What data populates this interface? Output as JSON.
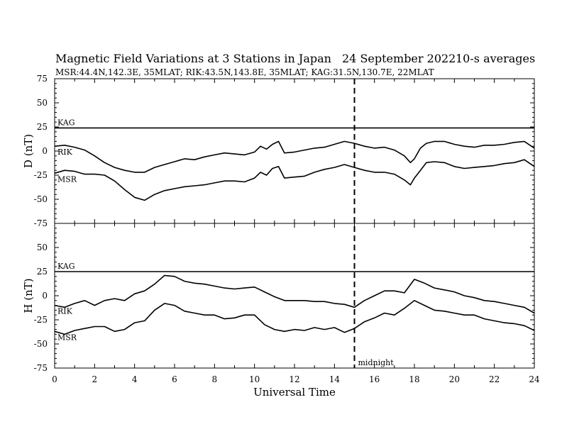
{
  "header": {
    "title": "Magnetic Field Variations at 3 Stations in Japan",
    "date": "24 September 2022",
    "averaging": "10-s averages",
    "stations_line": "MSR:44.4N,142.3E, 35MLAT;  RIK:43.5N,143.8E, 35MLAT;  KAG:31.5N,130.7E, 22MLAT"
  },
  "chart_data": [
    {
      "type": "line",
      "panel": "top",
      "ylabel": "D (nT)",
      "ylim": [
        -75,
        75
      ],
      "yticks": [
        "75",
        "50",
        "25",
        "0",
        "-25",
        "-50",
        "-75"
      ],
      "xlim": [
        0,
        24
      ],
      "grid": false,
      "series": [
        {
          "name": "KAG",
          "x": [
            0,
            24
          ],
          "values": [
            24,
            24
          ]
        },
        {
          "name": "RIK",
          "x": [
            0,
            0.5,
            1,
            1.5,
            2,
            2.5,
            3,
            3.5,
            4,
            4.5,
            5,
            5.5,
            6,
            6.5,
            7,
            7.5,
            8,
            8.5,
            9,
            9.5,
            10,
            10.3,
            10.6,
            10.9,
            11.2,
            11.5,
            12,
            12.5,
            13,
            13.5,
            14,
            14.5,
            15,
            15.5,
            16,
            16.5,
            17,
            17.5,
            17.8,
            18,
            18.3,
            18.6,
            19,
            19.5,
            20,
            20.5,
            21,
            21.5,
            22,
            22.5,
            23,
            23.5,
            24
          ],
          "values": [
            5,
            6,
            4,
            1,
            -5,
            -12,
            -17,
            -20,
            -22,
            -22,
            -17,
            -14,
            -11,
            -8,
            -9,
            -6,
            -4,
            -2,
            -3,
            -4,
            -1,
            5,
            2,
            7,
            10,
            -2,
            -1,
            1,
            3,
            4,
            7,
            10,
            8,
            5,
            3,
            4,
            1,
            -5,
            -12,
            -8,
            3,
            8,
            10,
            10,
            7,
            5,
            4,
            6,
            6,
            7,
            9,
            10,
            3
          ]
        },
        {
          "name": "MSR",
          "x": [
            0,
            0.5,
            1,
            1.5,
            2,
            2.5,
            3,
            3.5,
            4,
            4.5,
            5,
            5.5,
            6,
            6.5,
            7,
            7.5,
            8,
            8.5,
            9,
            9.5,
            10,
            10.3,
            10.6,
            10.9,
            11.2,
            11.5,
            12,
            12.5,
            13,
            13.5,
            14,
            14.5,
            15,
            15.5,
            16,
            16.5,
            17,
            17.5,
            17.8,
            18,
            18.3,
            18.6,
            19,
            19.5,
            20,
            20.5,
            21,
            21.5,
            22,
            22.5,
            23,
            23.5,
            24
          ],
          "values": [
            -23,
            -20,
            -21,
            -24,
            -24,
            -25,
            -31,
            -40,
            -48,
            -51,
            -45,
            -41,
            -39,
            -37,
            -36,
            -35,
            -33,
            -31,
            -31,
            -32,
            -28,
            -22,
            -25,
            -18,
            -16,
            -28,
            -27,
            -26,
            -22,
            -19,
            -17,
            -14,
            -17,
            -20,
            -22,
            -22,
            -24,
            -30,
            -35,
            -28,
            -20,
            -12,
            -11,
            -12,
            -16,
            -18,
            -17,
            -16,
            -15,
            -13,
            -12,
            -9,
            -16
          ]
        }
      ]
    },
    {
      "type": "line",
      "panel": "bottom",
      "ylabel": "H (nT)",
      "xlabel": "Universal Time",
      "ylim": [
        -75,
        75
      ],
      "yticks": [
        "75",
        "50",
        "25",
        "0",
        "-25",
        "-50",
        "-75"
      ],
      "xlim": [
        0,
        24
      ],
      "xticks": [
        "0",
        "2",
        "4",
        "6",
        "8",
        "10",
        "12",
        "14",
        "16",
        "18",
        "20",
        "22",
        "24"
      ],
      "grid": false,
      "marker_line": {
        "x": 15,
        "label": "midnight"
      },
      "series": [
        {
          "name": "KAG",
          "x": [
            0,
            24
          ],
          "values": [
            25,
            25
          ]
        },
        {
          "name": "RIK",
          "x": [
            0,
            0.5,
            1,
            1.5,
            2,
            2.5,
            3,
            3.5,
            4,
            4.5,
            5,
            5.5,
            6,
            6.5,
            7,
            7.5,
            8,
            8.5,
            9,
            9.5,
            10,
            10.5,
            11,
            11.5,
            12,
            12.5,
            13,
            13.5,
            14,
            14.5,
            15,
            15.5,
            16,
            16.5,
            17,
            17.5,
            18,
            18.5,
            19,
            19.5,
            20,
            20.5,
            21,
            21.5,
            22,
            22.5,
            23,
            23.5,
            24
          ],
          "values": [
            -10,
            -12,
            -8,
            -5,
            -10,
            -5,
            -3,
            -5,
            2,
            5,
            12,
            21,
            20,
            15,
            13,
            12,
            10,
            8,
            7,
            8,
            9,
            4,
            -1,
            -5,
            -5,
            -5,
            -6,
            -6,
            -8,
            -9,
            -12,
            -5,
            0,
            5,
            5,
            3,
            17,
            13,
            8,
            6,
            4,
            0,
            -2,
            -5,
            -6,
            -8,
            -10,
            -12,
            -18
          ]
        },
        {
          "name": "MSR",
          "x": [
            0,
            0.5,
            1,
            1.5,
            2,
            2.5,
            3,
            3.5,
            4,
            4.5,
            5,
            5.5,
            6,
            6.5,
            7,
            7.5,
            8,
            8.5,
            9,
            9.5,
            10,
            10.5,
            11,
            11.5,
            12,
            12.5,
            13,
            13.5,
            14,
            14.5,
            15,
            15.5,
            16,
            16.5,
            17,
            17.5,
            18,
            18.5,
            19,
            19.5,
            20,
            20.5,
            21,
            21.5,
            22,
            22.5,
            23,
            23.5,
            24
          ],
          "values": [
            -37,
            -40,
            -36,
            -34,
            -32,
            -32,
            -37,
            -35,
            -28,
            -26,
            -15,
            -8,
            -10,
            -16,
            -18,
            -20,
            -20,
            -24,
            -23,
            -20,
            -20,
            -30,
            -35,
            -37,
            -35,
            -36,
            -33,
            -35,
            -33,
            -38,
            -34,
            -27,
            -23,
            -18,
            -20,
            -13,
            -5,
            -10,
            -15,
            -16,
            -18,
            -20,
            -20,
            -24,
            -26,
            -28,
            -29,
            -31,
            -36
          ]
        }
      ]
    }
  ]
}
